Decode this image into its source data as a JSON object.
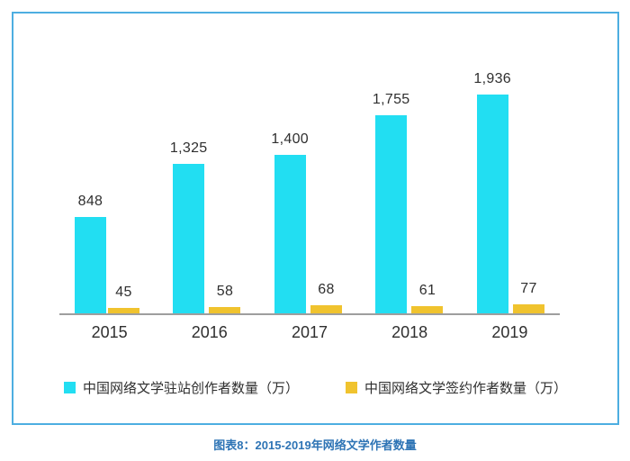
{
  "chart_data": {
    "type": "bar",
    "categories": [
      "2015",
      "2016",
      "2017",
      "2018",
      "2019"
    ],
    "series": [
      {
        "name": "中国网络文学驻站创作者数量（万）",
        "values": [
          848,
          1325,
          1400,
          1755,
          1936
        ],
        "labels": [
          "848",
          "1,325",
          "1,400",
          "1,755",
          "1,936"
        ],
        "color": "#22def2",
        "key": "resident-creators"
      },
      {
        "name": "中国网络文学签约作者数量（万）",
        "values": [
          45,
          58,
          68,
          61,
          77
        ],
        "labels": [
          "45",
          "58",
          "68",
          "61",
          "77"
        ],
        "color": "#f0c32e",
        "key": "signed-authors"
      }
    ],
    "title": "图表8：2015-2019年网络文学作者数量",
    "xlabel": "",
    "ylabel": "",
    "ylim": [
      0,
      2000
    ],
    "grid": false,
    "legend_position": "bottom",
    "value_labels": true
  },
  "caption": "图表8：2015-2019年网络文学作者数量",
  "colors": {
    "frame_border": "#4daee1",
    "axis_line": "#9e9e9e",
    "caption_text": "#2e74b5",
    "label_text": "#2f2f2f"
  }
}
